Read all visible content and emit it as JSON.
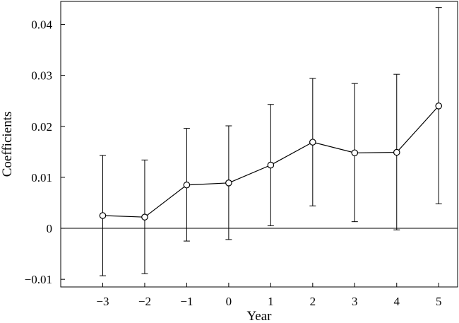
{
  "chart_data": {
    "type": "line",
    "title": "",
    "xlabel": "Year",
    "ylabel": "Coefficients",
    "x": [
      -3,
      -2,
      -1,
      0,
      1,
      2,
      3,
      4,
      5
    ],
    "x_tick_labels": [
      "−3",
      "−2",
      "−1",
      "0",
      "1",
      "2",
      "3",
      "4",
      "5"
    ],
    "xlim": [
      -4.0,
      5.45
    ],
    "ylim": [
      -0.0115,
      0.0445
    ],
    "y_ticks": [
      -0.01,
      0,
      0.01,
      0.02,
      0.03,
      0.04
    ],
    "y_tick_labels": [
      "−0.01",
      "0",
      "0.01",
      "0.02",
      "0.03",
      "0.04"
    ],
    "reference_line_y": 0,
    "grid": false,
    "legend": "none",
    "series": [
      {
        "values": [
          0.0025,
          0.0022,
          0.0085,
          0.0089,
          0.0124,
          0.0169,
          0.0148,
          0.0149,
          0.024
        ],
        "ci_lower": [
          -0.0093,
          -0.0089,
          -0.0025,
          -0.0022,
          0.0005,
          0.0044,
          0.0013,
          -0.0003,
          0.0048
        ],
        "ci_upper": [
          0.0143,
          0.0134,
          0.0196,
          0.0201,
          0.0243,
          0.0294,
          0.0284,
          0.0302,
          0.0433
        ],
        "color": "#000000"
      }
    ]
  }
}
